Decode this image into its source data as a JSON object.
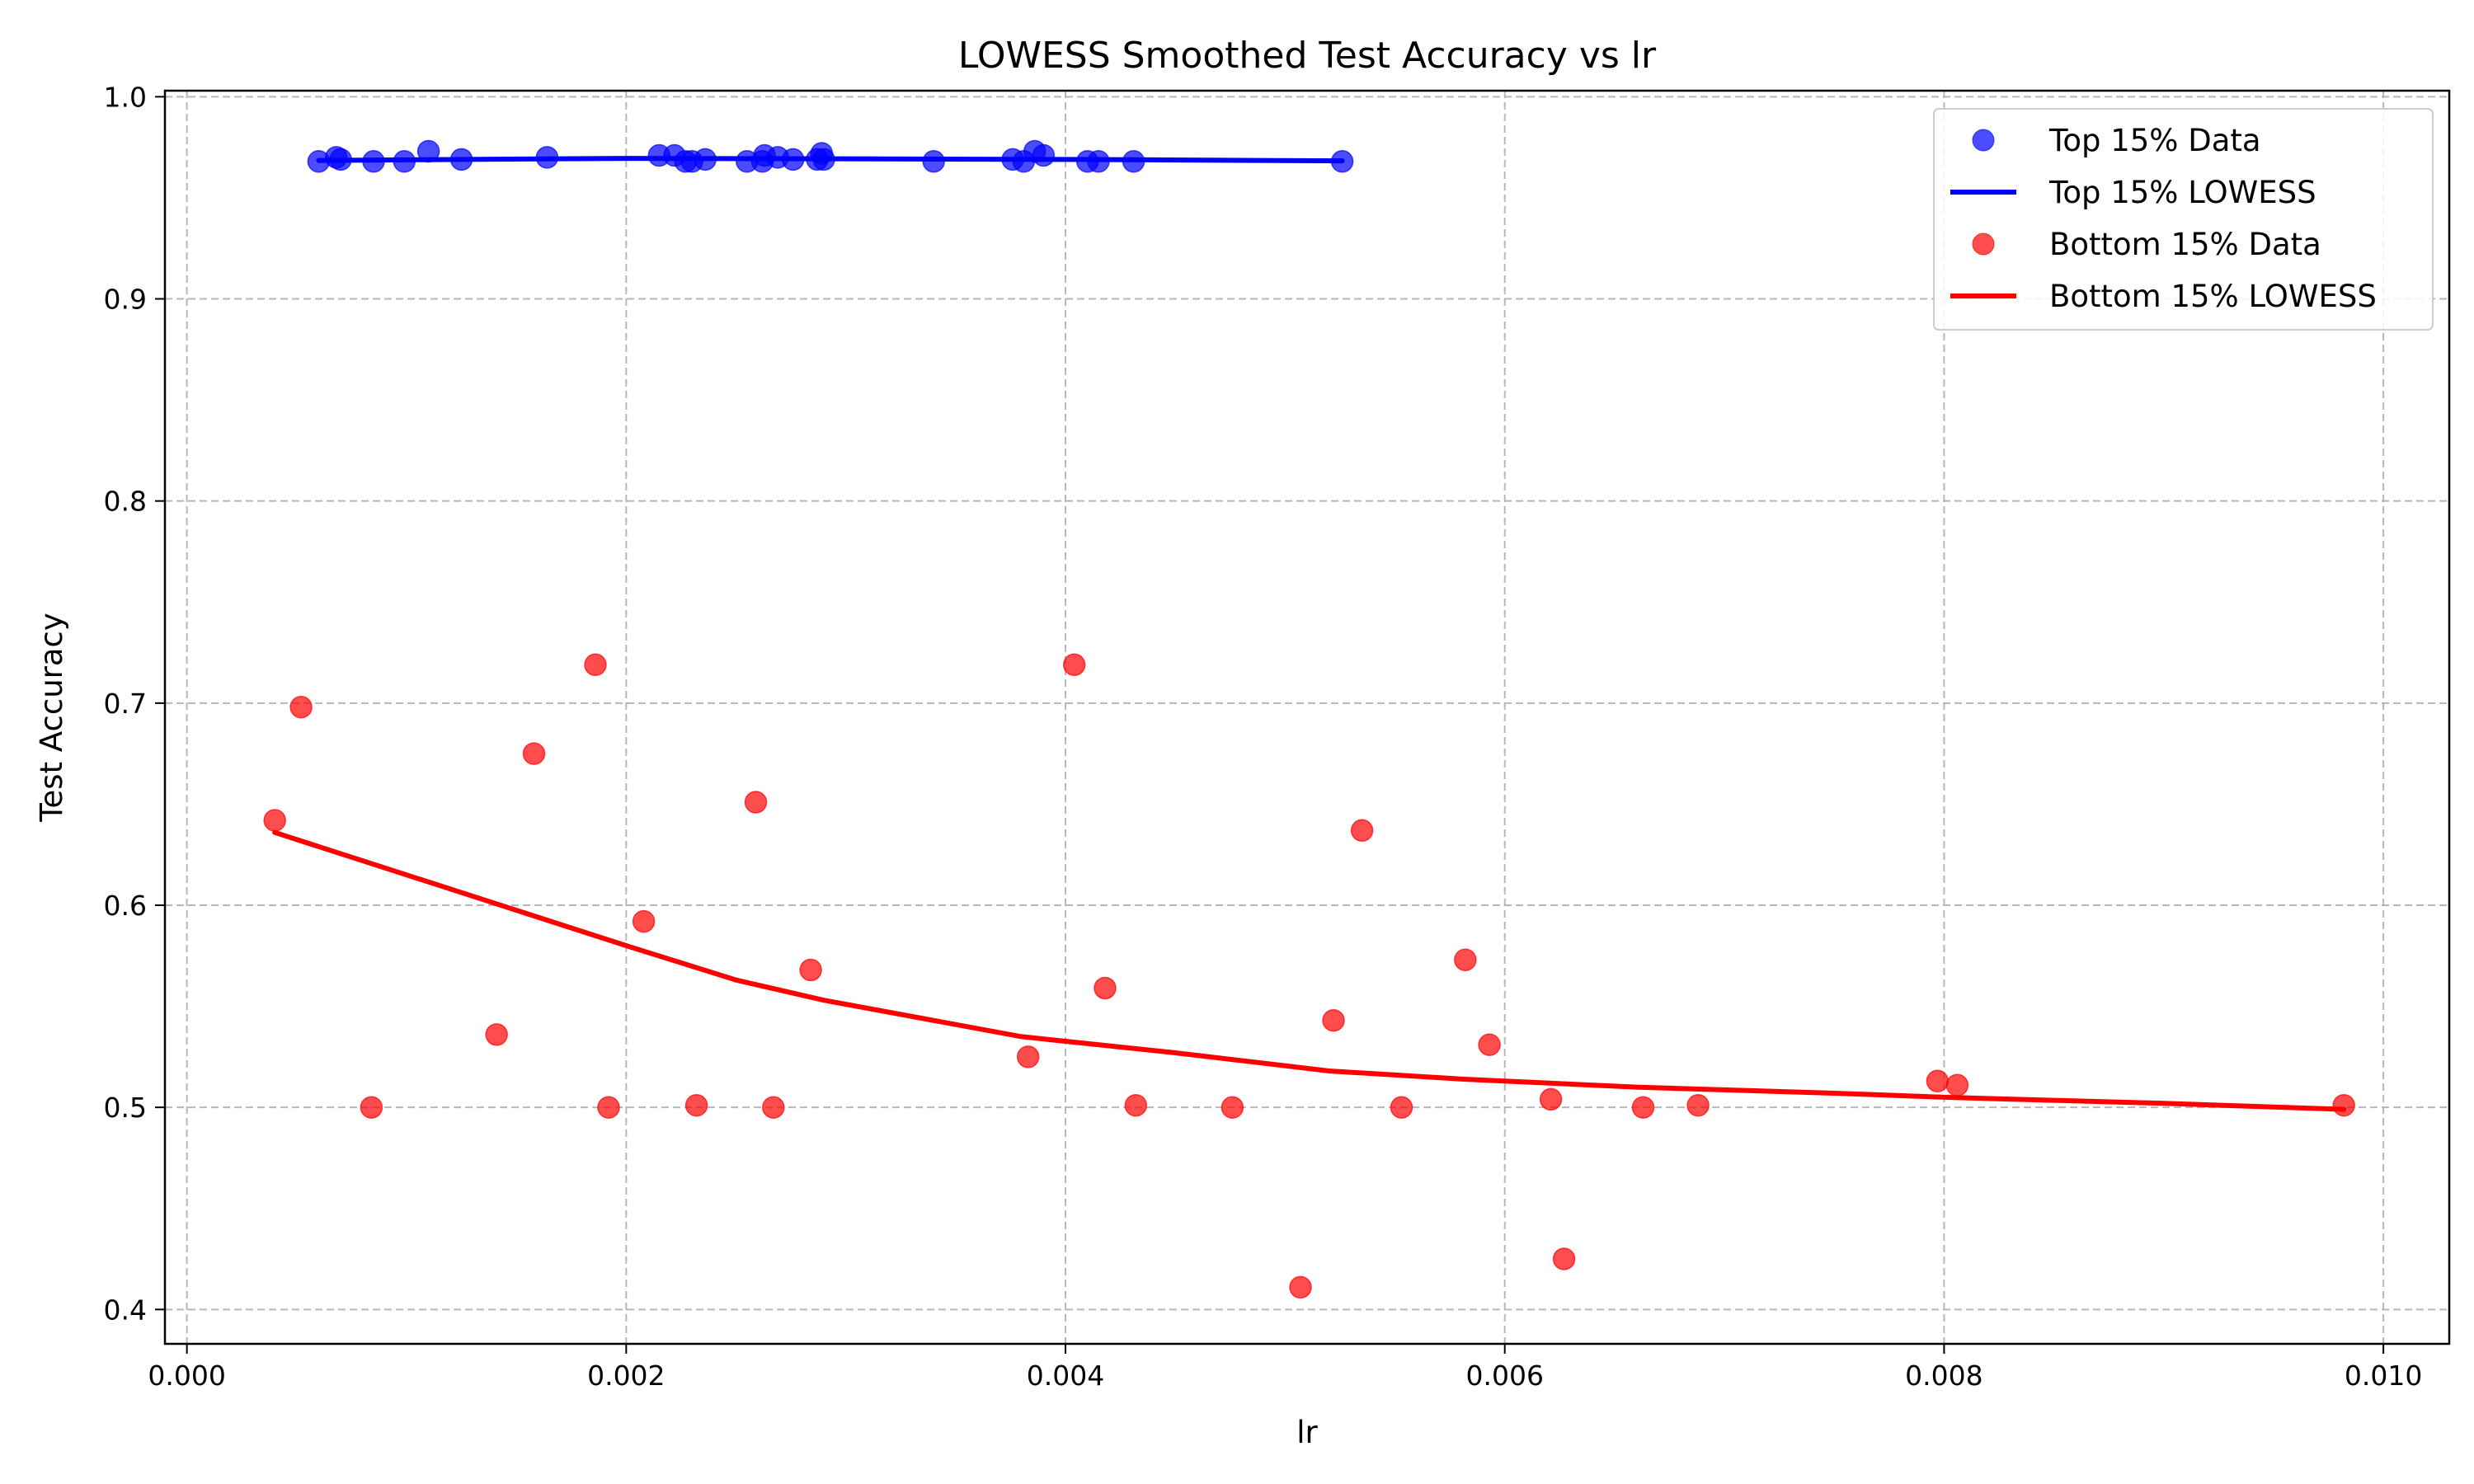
{
  "chart_data": {
    "type": "scatter",
    "title": "LOWESS Smoothed Test Accuracy vs lr",
    "xlabel": "lr",
    "ylabel": "Test Accuracy",
    "xlim": [
      -0.0001,
      0.0103
    ],
    "ylim": [
      0.383,
      1.003
    ],
    "xticks": [
      0.0,
      0.002,
      0.004,
      0.006,
      0.008,
      0.01
    ],
    "xtick_labels": [
      "0.000",
      "0.002",
      "0.004",
      "0.006",
      "0.008",
      "0.010"
    ],
    "yticks": [
      0.4,
      0.5,
      0.6,
      0.7,
      0.8,
      0.9,
      1.0
    ],
    "ytick_labels": [
      "0.4",
      "0.5",
      "0.6",
      "0.7",
      "0.8",
      "0.9",
      "1.0"
    ],
    "grid": true,
    "legend_position": "top-right",
    "series": [
      {
        "name": "Top 15% Data",
        "kind": "scatter",
        "color": "#0000ff",
        "points": [
          [
            0.0006,
            0.968
          ],
          [
            0.00068,
            0.97
          ],
          [
            0.0007,
            0.969
          ],
          [
            0.00085,
            0.968
          ],
          [
            0.00099,
            0.968
          ],
          [
            0.0011,
            0.973
          ],
          [
            0.00125,
            0.969
          ],
          [
            0.00164,
            0.97
          ],
          [
            0.00215,
            0.971
          ],
          [
            0.00222,
            0.971
          ],
          [
            0.00227,
            0.968
          ],
          [
            0.0023,
            0.968
          ],
          [
            0.00236,
            0.969
          ],
          [
            0.00255,
            0.968
          ],
          [
            0.00262,
            0.968
          ],
          [
            0.00263,
            0.971
          ],
          [
            0.00269,
            0.97
          ],
          [
            0.00276,
            0.969
          ],
          [
            0.00287,
            0.969
          ],
          [
            0.00289,
            0.972
          ],
          [
            0.0029,
            0.969
          ],
          [
            0.0034,
            0.968
          ],
          [
            0.00376,
            0.969
          ],
          [
            0.00381,
            0.968
          ],
          [
            0.00386,
            0.973
          ],
          [
            0.0039,
            0.971
          ],
          [
            0.0041,
            0.968
          ],
          [
            0.00415,
            0.968
          ],
          [
            0.00431,
            0.968
          ],
          [
            0.00526,
            0.968
          ]
        ]
      },
      {
        "name": "Top 15% LOWESS",
        "kind": "line",
        "color": "#0000ff",
        "points": [
          [
            0.0006,
            0.9685
          ],
          [
            0.002,
            0.9695
          ],
          [
            0.003,
            0.9693
          ],
          [
            0.004,
            0.969
          ],
          [
            0.00526,
            0.9683
          ]
        ]
      },
      {
        "name": "Bottom 15% Data",
        "kind": "scatter",
        "color": "#ff0000",
        "points": [
          [
            0.0004,
            0.642
          ],
          [
            0.00052,
            0.698
          ],
          [
            0.00084,
            0.5
          ],
          [
            0.00141,
            0.536
          ],
          [
            0.00158,
            0.675
          ],
          [
            0.00186,
            0.719
          ],
          [
            0.00192,
            0.5
          ],
          [
            0.00208,
            0.592
          ],
          [
            0.00232,
            0.501
          ],
          [
            0.00259,
            0.651
          ],
          [
            0.00267,
            0.5
          ],
          [
            0.00284,
            0.568
          ],
          [
            0.00383,
            0.525
          ],
          [
            0.00404,
            0.719
          ],
          [
            0.00418,
            0.559
          ],
          [
            0.00432,
            0.501
          ],
          [
            0.00476,
            0.5
          ],
          [
            0.00507,
            0.411
          ],
          [
            0.00522,
            0.543
          ],
          [
            0.00535,
            0.637
          ],
          [
            0.00553,
            0.5
          ],
          [
            0.00582,
            0.573
          ],
          [
            0.00593,
            0.531
          ],
          [
            0.00621,
            0.504
          ],
          [
            0.00627,
            0.425
          ],
          [
            0.00663,
            0.5
          ],
          [
            0.00688,
            0.501
          ],
          [
            0.00797,
            0.513
          ],
          [
            0.00806,
            0.511
          ],
          [
            0.00982,
            0.501
          ]
        ]
      },
      {
        "name": "Bottom 15% LOWESS",
        "kind": "line",
        "color": "#ff0000",
        "points": [
          [
            0.0004,
            0.636
          ],
          [
            0.001,
            0.615
          ],
          [
            0.002,
            0.58
          ],
          [
            0.0025,
            0.563
          ],
          [
            0.0029,
            0.553
          ],
          [
            0.0038,
            0.535
          ],
          [
            0.0045,
            0.527
          ],
          [
            0.0052,
            0.518
          ],
          [
            0.0058,
            0.514
          ],
          [
            0.0066,
            0.51
          ],
          [
            0.0075,
            0.507
          ],
          [
            0.008,
            0.505
          ],
          [
            0.009,
            0.502
          ],
          [
            0.00982,
            0.499
          ]
        ]
      }
    ]
  }
}
